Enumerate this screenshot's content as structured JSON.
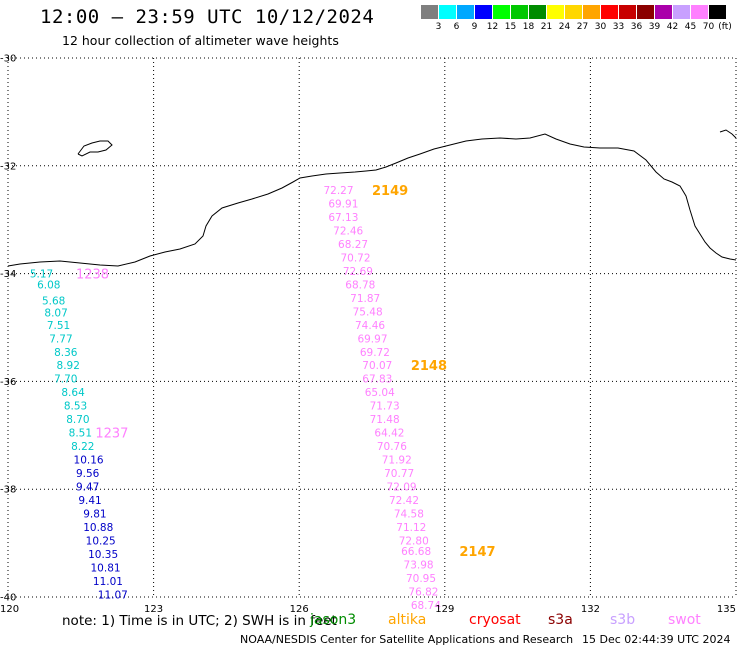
{
  "header": {
    "title": "12:00 – 23:59 UTC 10/12/2024",
    "subtitle": "12 hour collection of altimeter wave heights"
  },
  "color_scale": {
    "unit": "(ft)",
    "swatches": [
      {
        "color": "#7f7f7f",
        "label": "3"
      },
      {
        "color": "#00ffff",
        "label": "6"
      },
      {
        "color": "#00a8ff",
        "label": "9"
      },
      {
        "color": "#0000ff",
        "label": "12"
      },
      {
        "color": "#00ff00",
        "label": "15"
      },
      {
        "color": "#00c800",
        "label": "18"
      },
      {
        "color": "#008c00",
        "label": "21"
      },
      {
        "color": "#ffff00",
        "label": "24"
      },
      {
        "color": "#ffd700",
        "label": "27"
      },
      {
        "color": "#ffa500",
        "label": "30"
      },
      {
        "color": "#ff0000",
        "label": "33"
      },
      {
        "color": "#c80000",
        "label": "36"
      },
      {
        "color": "#8b0000",
        "label": "39"
      },
      {
        "color": "#aa00aa",
        "label": "42"
      },
      {
        "color": "#c8a0ff",
        "label": "45"
      },
      {
        "color": "#ff80ff",
        "label": "70"
      },
      {
        "color": "#000000",
        "label": ""
      }
    ]
  },
  "map": {
    "lon_range": [
      120,
      135
    ],
    "lat_range": [
      -40,
      -30
    ],
    "x_ticks": [
      {
        "value": 120,
        "label": "120"
      },
      {
        "value": 123,
        "label": "123"
      },
      {
        "value": 126,
        "label": "126"
      },
      {
        "value": 129,
        "label": "129"
      },
      {
        "value": 132,
        "label": "132"
      },
      {
        "value": 135,
        "label": "135"
      }
    ],
    "y_ticks": [
      {
        "value": -30,
        "label": "-30"
      },
      {
        "value": -32,
        "label": "-32"
      },
      {
        "value": -34,
        "label": "-34"
      },
      {
        "value": -36,
        "label": "-36"
      },
      {
        "value": -38,
        "label": "-38"
      },
      {
        "value": -40,
        "label": "-40"
      }
    ],
    "grid": true
  },
  "chart_data": {
    "type": "scatter",
    "x_label": "",
    "y_label": "",
    "xlim": [
      120,
      135
    ],
    "ylim": [
      -40,
      -30
    ],
    "tracks": [
      {
        "satellite": "jason3",
        "label_color": "#00c8c8",
        "pass_id": "1237",
        "pass_label_color": "#ff80ff",
        "pass_label_pos": {
          "lon": 121.8,
          "lat": -36.95
        },
        "points": [
          {
            "lon": 120.45,
            "lat": -34.0,
            "value": "5.17",
            "color": "#00c8c8"
          },
          {
            "lon": 120.6,
            "lat": -34.2,
            "value": "6.08",
            "color": "#00c8c8"
          },
          {
            "lon": 120.7,
            "lat": -34.5,
            "value": "5.68",
            "color": "#00c8c8"
          },
          {
            "lon": 120.75,
            "lat": -34.72,
            "value": "8.07",
            "color": "#00c8c8"
          },
          {
            "lon": 120.8,
            "lat": -34.95,
            "value": "7.51",
            "color": "#00c8c8"
          },
          {
            "lon": 120.85,
            "lat": -35.2,
            "value": "7.77",
            "color": "#00c8c8"
          },
          {
            "lon": 120.95,
            "lat": -35.45,
            "value": "8.36",
            "color": "#00c8c8"
          },
          {
            "lon": 121.0,
            "lat": -35.7,
            "value": "8.92",
            "color": "#00c8c8"
          },
          {
            "lon": 120.95,
            "lat": -35.95,
            "value": "7.70",
            "color": "#00c8c8"
          },
          {
            "lon": 121.1,
            "lat": -36.2,
            "value": "8.64",
            "color": "#00c8c8"
          },
          {
            "lon": 121.15,
            "lat": -36.45,
            "value": "8.53",
            "color": "#00c8c8"
          },
          {
            "lon": 121.2,
            "lat": -36.7,
            "value": "8.70",
            "color": "#00c8c8"
          },
          {
            "lon": 121.25,
            "lat": -36.95,
            "value": "8.51",
            "color": "#00c8c8"
          },
          {
            "lon": 121.3,
            "lat": -37.2,
            "value": "8.22",
            "color": "#00c8c8"
          },
          {
            "lon": 121.35,
            "lat": -37.45,
            "value": "10.16",
            "color": "#0000c8"
          },
          {
            "lon": 121.4,
            "lat": -37.7,
            "value": "9.56",
            "color": "#0000c8"
          },
          {
            "lon": 121.4,
            "lat": -37.95,
            "value": "9.47",
            "color": "#0000c8"
          },
          {
            "lon": 121.45,
            "lat": -38.2,
            "value": "9.41",
            "color": "#0000c8"
          },
          {
            "lon": 121.55,
            "lat": -38.45,
            "value": "9.81",
            "color": "#0000c8"
          },
          {
            "lon": 121.55,
            "lat": -38.7,
            "value": "10.88",
            "color": "#0000c8"
          },
          {
            "lon": 121.6,
            "lat": -38.95,
            "value": "10.25",
            "color": "#0000c8"
          },
          {
            "lon": 121.65,
            "lat": -39.2,
            "value": "10.35",
            "color": "#0000c8"
          },
          {
            "lon": 121.7,
            "lat": -39.45,
            "value": "10.81",
            "color": "#0000c8"
          },
          {
            "lon": 121.75,
            "lat": -39.7,
            "value": "11.01",
            "color": "#0000c8"
          },
          {
            "lon": 121.85,
            "lat": -39.95,
            "value": "11.07",
            "color": "#0000c8"
          }
        ]
      },
      {
        "satellite": "swot",
        "label_color": "#ff80ff",
        "points": [
          {
            "lon": 126.5,
            "lat": -32.45,
            "value": "72.27",
            "color": "#ff80ff"
          },
          {
            "lon": 126.6,
            "lat": -32.7,
            "value": "69.91",
            "color": "#ff80ff"
          },
          {
            "lon": 126.6,
            "lat": -32.95,
            "value": "67.13",
            "color": "#ff80ff"
          },
          {
            "lon": 126.7,
            "lat": -33.2,
            "value": "72.46",
            "color": "#ff80ff"
          },
          {
            "lon": 126.8,
            "lat": -33.45,
            "value": "68.27",
            "color": "#ff80ff"
          },
          {
            "lon": 126.85,
            "lat": -33.7,
            "value": "70.72",
            "color": "#ff80ff"
          },
          {
            "lon": 126.9,
            "lat": -33.95,
            "value": "72.69",
            "color": "#ff80ff"
          },
          {
            "lon": 126.95,
            "lat": -34.2,
            "value": "68.78",
            "color": "#ff80ff"
          },
          {
            "lon": 127.05,
            "lat": -34.45,
            "value": "71.87",
            "color": "#ff80ff"
          },
          {
            "lon": 127.1,
            "lat": -34.7,
            "value": "75.48",
            "color": "#ff80ff"
          },
          {
            "lon": 127.15,
            "lat": -34.95,
            "value": "74.46",
            "color": "#ff80ff"
          },
          {
            "lon": 127.2,
            "lat": -35.2,
            "value": "69.97",
            "color": "#ff80ff"
          },
          {
            "lon": 127.25,
            "lat": -35.45,
            "value": "69.72",
            "color": "#ff80ff"
          },
          {
            "lon": 127.3,
            "lat": -35.7,
            "value": "70.07",
            "color": "#ff80ff"
          },
          {
            "lon": 127.3,
            "lat": -35.95,
            "value": "67.83",
            "color": "#ff80ff"
          },
          {
            "lon": 127.35,
            "lat": -36.2,
            "value": "65.04",
            "color": "#ff80ff"
          },
          {
            "lon": 127.45,
            "lat": -36.45,
            "value": "71.73",
            "color": "#ff80ff"
          },
          {
            "lon": 127.45,
            "lat": -36.7,
            "value": "71.48",
            "color": "#ff80ff"
          },
          {
            "lon": 127.55,
            "lat": -36.95,
            "value": "64.42",
            "color": "#ff80ff"
          },
          {
            "lon": 127.6,
            "lat": -37.2,
            "value": "70.76",
            "color": "#ff80ff"
          },
          {
            "lon": 127.7,
            "lat": -37.45,
            "value": "71.92",
            "color": "#ff80ff"
          },
          {
            "lon": 127.75,
            "lat": -37.7,
            "value": "70.77",
            "color": "#ff80ff"
          },
          {
            "lon": 127.8,
            "lat": -37.95,
            "value": "72.09",
            "color": "#ff80ff"
          },
          {
            "lon": 127.85,
            "lat": -38.2,
            "value": "72.42",
            "color": "#ff80ff"
          },
          {
            "lon": 127.95,
            "lat": -38.45,
            "value": "74.58",
            "color": "#ff80ff"
          },
          {
            "lon": 128.0,
            "lat": -38.7,
            "value": "71.12",
            "color": "#ff80ff"
          },
          {
            "lon": 128.05,
            "lat": -38.95,
            "value": "72.80",
            "color": "#ff80ff"
          },
          {
            "lon": 128.1,
            "lat": -39.15,
            "value": "66.68",
            "color": "#ff80ff"
          },
          {
            "lon": 128.15,
            "lat": -39.4,
            "value": "73.98",
            "color": "#ff80ff"
          },
          {
            "lon": 128.2,
            "lat": -39.65,
            "value": "70.95",
            "color": "#ff80ff"
          },
          {
            "lon": 128.25,
            "lat": -39.9,
            "value": "76.82",
            "color": "#ff80ff"
          },
          {
            "lon": 128.3,
            "lat": -40.15,
            "value": "68.74",
            "color": "#ff80ff"
          }
        ],
        "pass_labels": [
          {
            "id": "2149",
            "lon": 127.5,
            "lat": -32.45,
            "color": "#ffa500"
          },
          {
            "id": "2148",
            "lon": 128.3,
            "lat": -35.7,
            "color": "#ffa500"
          },
          {
            "id": "2147",
            "lon": 129.3,
            "lat": -39.15,
            "color": "#ffa500"
          }
        ]
      }
    ],
    "extra_labels": [
      {
        "id": "1238",
        "lon": 121.4,
        "lat": -34.0,
        "color": "#ff80ff"
      }
    ]
  },
  "footer": {
    "note": "note:  1) Time is in UTC; 2) SWH is in feet",
    "satellites": [
      {
        "name": "jason3",
        "color": "#008c00"
      },
      {
        "name": "altika",
        "color": "#ffa500"
      },
      {
        "name": "cryosat",
        "color": "#ff0000"
      },
      {
        "name": "s3a",
        "color": "#8b0000"
      },
      {
        "name": "s3b",
        "color": "#c8a0ff"
      },
      {
        "name": "swot",
        "color": "#ff80ff"
      }
    ],
    "credit": "NOAA/NESDIS Center for Satellite Applications and Research",
    "timestamp": "15 Dec 02:44:39 UTC 2024"
  }
}
